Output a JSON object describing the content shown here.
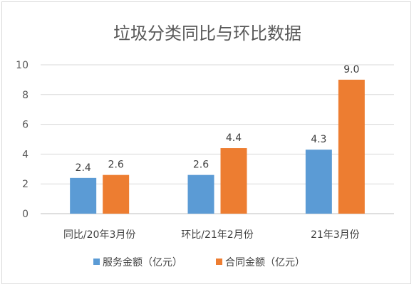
{
  "chart_data": {
    "type": "bar",
    "title": "垃圾分类同比与环比数据",
    "categories": [
      "同比/20年3月份",
      "环比/21年2月份",
      "21年3月份"
    ],
    "series": [
      {
        "name": "服务金额（亿元）",
        "color": "#5b9bd5",
        "values": [
          2.4,
          2.6,
          4.3
        ],
        "labels": [
          "2.4",
          "2.6",
          "4.3"
        ]
      },
      {
        "name": "合同金额（亿元）",
        "color": "#ed7d31",
        "values": [
          2.6,
          4.4,
          9.0
        ],
        "labels": [
          "2.6",
          "4.4",
          "9.0"
        ]
      }
    ],
    "ylim": [
      0,
      10
    ],
    "yticks": [
      0,
      2,
      4,
      6,
      8,
      10
    ],
    "grid": true,
    "legend_position": "bottom"
  }
}
